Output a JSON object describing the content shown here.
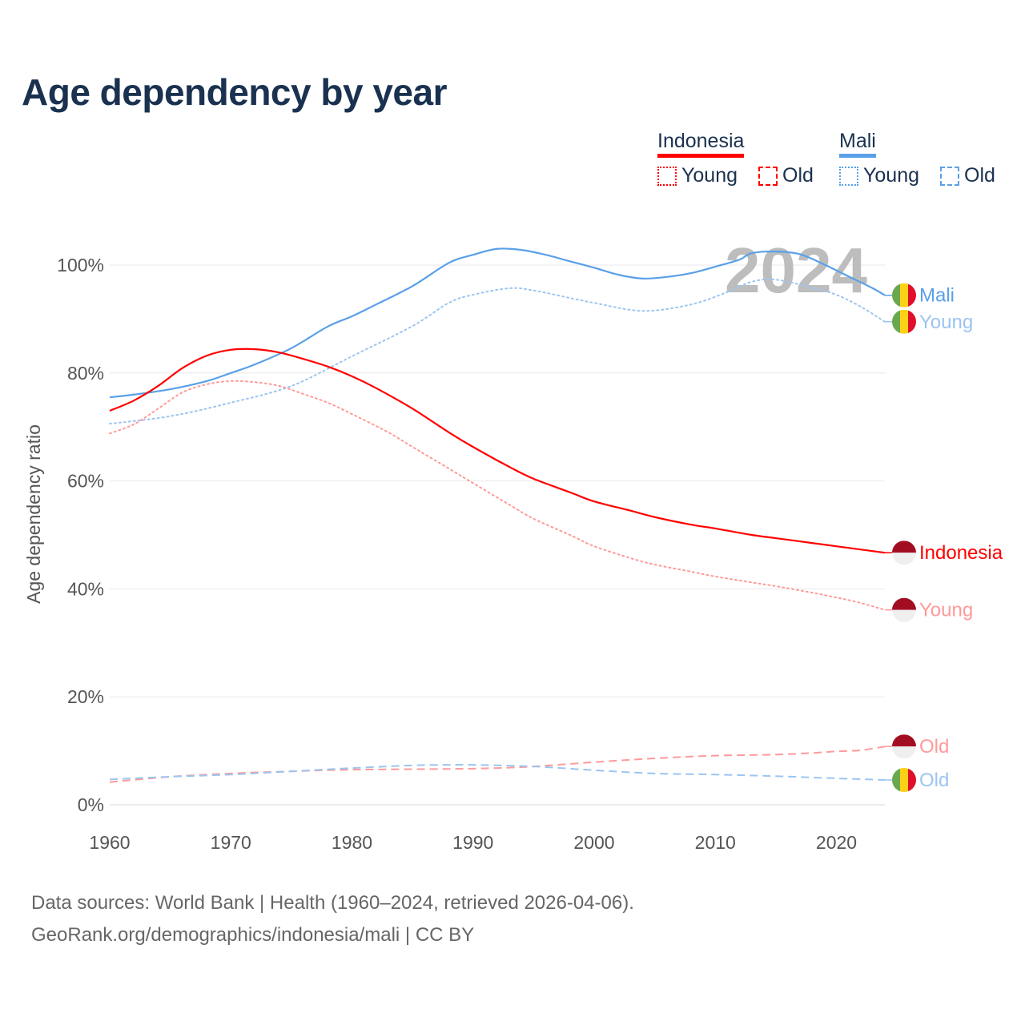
{
  "title": "Age dependency by year",
  "legend": {
    "groups": [
      {
        "name": "Indonesia",
        "color": "#ff0000",
        "items": [
          "Young",
          "Old"
        ]
      },
      {
        "name": "Mali",
        "color": "#5aa0e8",
        "items": [
          "Young",
          "Old"
        ]
      }
    ]
  },
  "year_label": "2024",
  "source": {
    "line1": "Data sources: World Bank | Health (1960–2024, retrieved 2026-04-06).",
    "line2": "GeoRank.org/demographics/indonesia/mali | CC BY"
  },
  "chart_data": {
    "type": "line",
    "title": "Age dependency by year",
    "xlabel": "",
    "ylabel": "Age dependency ratio",
    "xlim": [
      1960,
      2024
    ],
    "ylim": [
      0,
      100
    ],
    "x_ticks": [
      "1960",
      "1970",
      "1980",
      "1990",
      "2000",
      "2010",
      "2020"
    ],
    "y_ticks": [
      "0%",
      "20%",
      "40%",
      "60%",
      "80%",
      "100%"
    ],
    "y_tick_values": [
      0,
      20,
      40,
      60,
      80,
      100
    ],
    "grid": true,
    "series": [
      {
        "name": "Mali",
        "end_label": "Mali",
        "country": "mali",
        "style": "solid",
        "color": "#5aa0e8",
        "x": [
          1960,
          1962,
          1965,
          1968,
          1970,
          1972,
          1975,
          1978,
          1980,
          1982,
          1985,
          1988,
          1990,
          1992,
          1994,
          1996,
          1998,
          2000,
          2002,
          2004,
          2006,
          2008,
          2010,
          2012,
          2013,
          2015,
          2017,
          2019,
          2021,
          2023,
          2024
        ],
        "y": [
          75.5,
          76,
          77,
          78.5,
          80,
          81.6,
          84.6,
          88.6,
          90.5,
          92.7,
          96.1,
          100.4,
          101.9,
          103,
          102.8,
          101.9,
          100.7,
          99.5,
          98.2,
          97.5,
          97.8,
          98.5,
          99.7,
          101,
          102.2,
          102.5,
          102,
          100.1,
          97.9,
          95.7,
          94.4
        ]
      },
      {
        "name": "Mali Young",
        "end_label": "Young",
        "country": "mali",
        "style": "dotted",
        "color": "#9cc5f0",
        "x": [
          1960,
          1965,
          1970,
          1975,
          1980,
          1985,
          1988,
          1990,
          1993,
          1995,
          1998,
          2000,
          2004,
          2008,
          2011,
          2013,
          2015,
          2018,
          2020,
          2022,
          2024
        ],
        "y": [
          70.6,
          72,
          74.5,
          77.6,
          83.1,
          88.7,
          93,
          94.5,
          95.7,
          95.3,
          93.9,
          93,
          91.5,
          92.7,
          95,
          96.9,
          97.3,
          95.8,
          94.5,
          92.3,
          89.5
        ]
      },
      {
        "name": "Indonesia",
        "end_label": "Indonesia",
        "country": "indonesia",
        "style": "solid",
        "color": "#ff0000",
        "x": [
          1960,
          1962,
          1964,
          1966,
          1968,
          1970,
          1972,
          1974,
          1976,
          1978,
          1980,
          1982,
          1985,
          1988,
          1990,
          1993,
          1995,
          1998,
          2000,
          2003,
          2005,
          2008,
          2010,
          2013,
          2015,
          2018,
          2020,
          2022,
          2024
        ],
        "y": [
          73,
          74.9,
          77.6,
          80.9,
          83.2,
          84.3,
          84.4,
          83.8,
          82.6,
          81.2,
          79.4,
          77.2,
          73.4,
          69,
          66.3,
          62.6,
          60.4,
          57.9,
          56.2,
          54.5,
          53.3,
          51.9,
          51.2,
          50,
          49.4,
          48.5,
          47.9,
          47.3,
          46.7
        ]
      },
      {
        "name": "Indonesia Young",
        "end_label": "Young",
        "country": "indonesia",
        "style": "dotted",
        "color": "#ff9a9a",
        "x": [
          1960,
          1962,
          1964,
          1966,
          1968,
          1970,
          1972,
          1974,
          1976,
          1978,
          1980,
          1983,
          1985,
          1988,
          1990,
          1993,
          1995,
          1998,
          2000,
          2003,
          2005,
          2008,
          2010,
          2013,
          2015,
          2018,
          2020,
          2022,
          2024
        ],
        "y": [
          68.8,
          70.5,
          73.4,
          76.4,
          77.9,
          78.5,
          78.3,
          77.6,
          76.1,
          74.5,
          72.4,
          69,
          66.3,
          62.3,
          59.6,
          55.6,
          53,
          50,
          47.9,
          45.7,
          44.5,
          43.2,
          42.3,
          41.2,
          40.5,
          39.3,
          38.4,
          37.4,
          36.1
        ]
      },
      {
        "name": "Indonesia Old",
        "end_label": "Old",
        "country": "indonesia",
        "style": "dashed",
        "color": "#ff9a9a",
        "x": [
          1960,
          1965,
          1970,
          1975,
          1980,
          1990,
          1995,
          2000,
          2005,
          2010,
          2015,
          2018,
          2020,
          2022,
          2024
        ],
        "y": [
          4.2,
          5.2,
          5.8,
          6.2,
          6.5,
          6.7,
          7.1,
          7.9,
          8.6,
          9.1,
          9.3,
          9.6,
          9.9,
          10.1,
          10.8
        ]
      },
      {
        "name": "Mali Old",
        "end_label": "Old",
        "country": "mali",
        "style": "dashed",
        "color": "#9cc5f0",
        "x": [
          1960,
          1965,
          1970,
          1975,
          1980,
          1985,
          1988,
          1990,
          1995,
          2000,
          2005,
          2010,
          2015,
          2020,
          2024
        ],
        "y": [
          4.7,
          5.2,
          5.6,
          6.2,
          6.8,
          7.3,
          7.4,
          7.4,
          7.1,
          6.4,
          5.8,
          5.6,
          5.3,
          4.9,
          4.6
        ]
      }
    ]
  }
}
